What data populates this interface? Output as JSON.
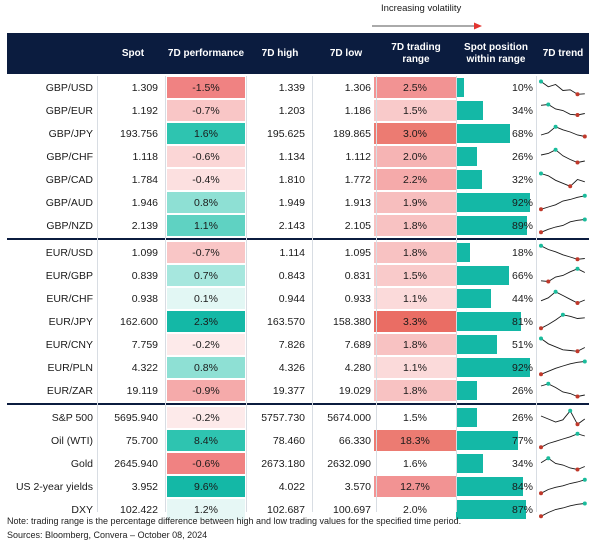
{
  "legend": {
    "label": "Increasing volatility"
  },
  "headers": {
    "spot": "Spot",
    "perf": "7D performance",
    "high": "7D high",
    "low": "7D low",
    "range": "7D trading range",
    "pos": "Spot position within range",
    "trend": "7D trend"
  },
  "groups": [
    {
      "rows": [
        {
          "name": "GBP/USD",
          "spot": "1.309",
          "perf": "-1.5%",
          "high": "1.339",
          "low": "1.306",
          "range": "2.5%",
          "pos": "10%",
          "pos_frac": 0.1,
          "perf_color": "#f08282",
          "range_color": "#f29393",
          "trend": [
            0.9,
            0.55,
            0.7,
            0.3,
            0.35,
            0.05,
            0.08
          ]
        },
        {
          "name": "GBP/EUR",
          "spot": "1.192",
          "perf": "-0.7%",
          "high": "1.203",
          "low": "1.186",
          "range": "1.5%",
          "pos": "34%",
          "pos_frac": 0.34,
          "perf_color": "#f9c6c6",
          "range_color": "#f9caca",
          "trend": [
            0.85,
            0.9,
            0.6,
            0.5,
            0.25,
            0.2,
            0.3
          ]
        },
        {
          "name": "GBP/JPY",
          "spot": "193.756",
          "perf": "1.6%",
          "high": "195.625",
          "low": "189.865",
          "range": "3.0%",
          "pos": "68%",
          "pos_frac": 0.68,
          "perf_color": "#2ec4b0",
          "range_color": "#ec7b72",
          "trend": [
            0.4,
            0.55,
            0.95,
            0.75,
            0.6,
            0.4,
            0.3
          ]
        },
        {
          "name": "GBP/CHF",
          "spot": "1.118",
          "perf": "-0.6%",
          "high": "1.134",
          "low": "1.112",
          "range": "2.0%",
          "pos": "26%",
          "pos_frac": 0.26,
          "perf_color": "#fbd6d6",
          "range_color": "#f6b4b4",
          "trend": [
            0.6,
            0.7,
            0.95,
            0.55,
            0.3,
            0.1,
            0.2
          ]
        },
        {
          "name": "GBP/CAD",
          "spot": "1.784",
          "perf": "-0.4%",
          "high": "1.810",
          "low": "1.772",
          "range": "2.2%",
          "pos": "32%",
          "pos_frac": 0.32,
          "perf_color": "#fce0e0",
          "range_color": "#f5aaaa",
          "trend": [
            0.9,
            0.75,
            0.45,
            0.25,
            0.05,
            0.5,
            0.35
          ]
        },
        {
          "name": "GBP/AUD",
          "spot": "1.946",
          "perf": "0.8%",
          "high": "1.949",
          "low": "1.913",
          "range": "1.9%",
          "pos": "92%",
          "pos_frac": 0.92,
          "perf_color": "#8ee0d4",
          "range_color": "#f7bebe",
          "trend": [
            0.05,
            0.2,
            0.35,
            0.6,
            0.7,
            0.85,
            0.95
          ]
        },
        {
          "name": "GBP/NZD",
          "spot": "2.139",
          "perf": "1.1%",
          "high": "2.143",
          "low": "2.105",
          "range": "1.8%",
          "pos": "89%",
          "pos_frac": 0.89,
          "perf_color": "#5fd2c2",
          "range_color": "#f8c2c2",
          "trend": [
            0.05,
            0.25,
            0.4,
            0.5,
            0.75,
            0.85,
            0.9
          ]
        }
      ]
    },
    {
      "rows": [
        {
          "name": "EUR/USD",
          "spot": "1.099",
          "perf": "-0.7%",
          "high": "1.114",
          "low": "1.095",
          "range": "1.8%",
          "pos": "18%",
          "pos_frac": 0.18,
          "perf_color": "#f9c6c6",
          "range_color": "#f8c2c2",
          "trend": [
            0.95,
            0.7,
            0.55,
            0.35,
            0.2,
            0.05,
            0.1
          ]
        },
        {
          "name": "EUR/GBP",
          "spot": "0.839",
          "perf": "0.7%",
          "high": "0.843",
          "low": "0.831",
          "range": "1.5%",
          "pos": "66%",
          "pos_frac": 0.66,
          "perf_color": "#a6e7de",
          "range_color": "#f9caca",
          "trend": [
            0.15,
            0.1,
            0.4,
            0.5,
            0.75,
            0.95,
            0.7
          ]
        },
        {
          "name": "EUR/CHF",
          "spot": "0.938",
          "perf": "0.1%",
          "high": "0.944",
          "low": "0.933",
          "range": "1.1%",
          "pos": "44%",
          "pos_frac": 0.44,
          "perf_color": "#e2f7f4",
          "range_color": "#fbdada",
          "trend": [
            0.35,
            0.55,
            0.95,
            0.7,
            0.45,
            0.2,
            0.4
          ]
        },
        {
          "name": "EUR/JPY",
          "spot": "162.600",
          "perf": "2.3%",
          "high": "163.570",
          "low": "158.380",
          "range": "3.3%",
          "pos": "81%",
          "pos_frac": 0.81,
          "perf_color": "#14b8a6",
          "range_color": "#ea6d64",
          "trend": [
            0.05,
            0.3,
            0.6,
            0.95,
            0.85,
            0.7,
            0.75
          ]
        },
        {
          "name": "EUR/CNY",
          "spot": "7.759",
          "perf": "-0.2%",
          "high": "7.826",
          "low": "7.689",
          "range": "1.8%",
          "pos": "51%",
          "pos_frac": 0.51,
          "perf_color": "#fdeaea",
          "range_color": "#f8c2c2",
          "trend": [
            0.9,
            0.55,
            0.35,
            0.15,
            0.1,
            0.05,
            0.3
          ]
        },
        {
          "name": "EUR/PLN",
          "spot": "4.322",
          "perf": "0.8%",
          "high": "4.326",
          "low": "4.280",
          "range": "1.1%",
          "pos": "92%",
          "pos_frac": 0.92,
          "perf_color": "#8ee0d4",
          "range_color": "#fbdada",
          "trend": [
            0.05,
            0.25,
            0.45,
            0.6,
            0.75,
            0.85,
            0.9
          ]
        },
        {
          "name": "EUR/ZAR",
          "spot": "19.119",
          "perf": "-0.9%",
          "high": "19.377",
          "low": "19.029",
          "range": "1.8%",
          "pos": "26%",
          "pos_frac": 0.26,
          "perf_color": "#f5aaaa",
          "range_color": "#f8c2c2",
          "trend": [
            0.8,
            0.95,
            0.7,
            0.4,
            0.3,
            0.1,
            0.2
          ]
        }
      ]
    },
    {
      "rows": [
        {
          "name": "S&P 500",
          "spot": "5695.940",
          "perf": "-0.2%",
          "high": "5757.730",
          "low": "5674.000",
          "range": "1.5%",
          "pos": "26%",
          "pos_frac": 0.26,
          "perf_color": "#fdeaea",
          "range_color": "#ffffff",
          "trend": [
            0.6,
            0.4,
            0.2,
            0.35,
            0.95,
            0.05,
            0.4
          ]
        },
        {
          "name": "Oil (WTI)",
          "spot": "75.700",
          "perf": "8.4%",
          "high": "78.460",
          "low": "66.330",
          "range": "18.3%",
          "pos": "77%",
          "pos_frac": 0.77,
          "perf_color": "#2ec4b0",
          "range_color": "#ec7b72",
          "trend": [
            0.05,
            0.3,
            0.45,
            0.6,
            0.75,
            0.95,
            0.8
          ]
        },
        {
          "name": "Gold",
          "spot": "2645.940",
          "perf": "-0.6%",
          "high": "2673.180",
          "low": "2632.090",
          "range": "1.6%",
          "pos": "34%",
          "pos_frac": 0.34,
          "perf_color": "#f08282",
          "range_color": "#ffffff",
          "trend": [
            0.55,
            0.85,
            0.5,
            0.4,
            0.2,
            0.1,
            0.3
          ]
        },
        {
          "name": "US 2-year yields",
          "spot": "3.952",
          "perf": "9.6%",
          "high": "4.022",
          "low": "3.570",
          "range": "12.7%",
          "pos": "84%",
          "pos_frac": 0.84,
          "perf_color": "#14b8a6",
          "range_color": "#f29393",
          "trend": [
            0.05,
            0.3,
            0.45,
            0.55,
            0.7,
            0.8,
            0.95
          ]
        },
        {
          "name": "DXY",
          "spot": "102.422",
          "perf": "1.2%",
          "high": "102.687",
          "low": "100.697",
          "range": "2.0%",
          "pos": "87%",
          "pos_frac": 0.87,
          "perf_color": "#e6f7f5",
          "range_color": "#ffffff",
          "trend": [
            0.05,
            0.3,
            0.5,
            0.6,
            0.75,
            0.85,
            0.9
          ]
        }
      ]
    }
  ],
  "notes": {
    "note": "Note: trading range is the percentage difference between high and low trading values for the specified time period.",
    "sources": "Sources: Bloomberg, Convera – October 08, 2024"
  },
  "colors": {
    "header": "#0b1c3f",
    "bar": "#14b8a6",
    "trend_line": "#1a1a1a",
    "trend_low": "#c0392b",
    "trend_high": "#1abc9c"
  }
}
